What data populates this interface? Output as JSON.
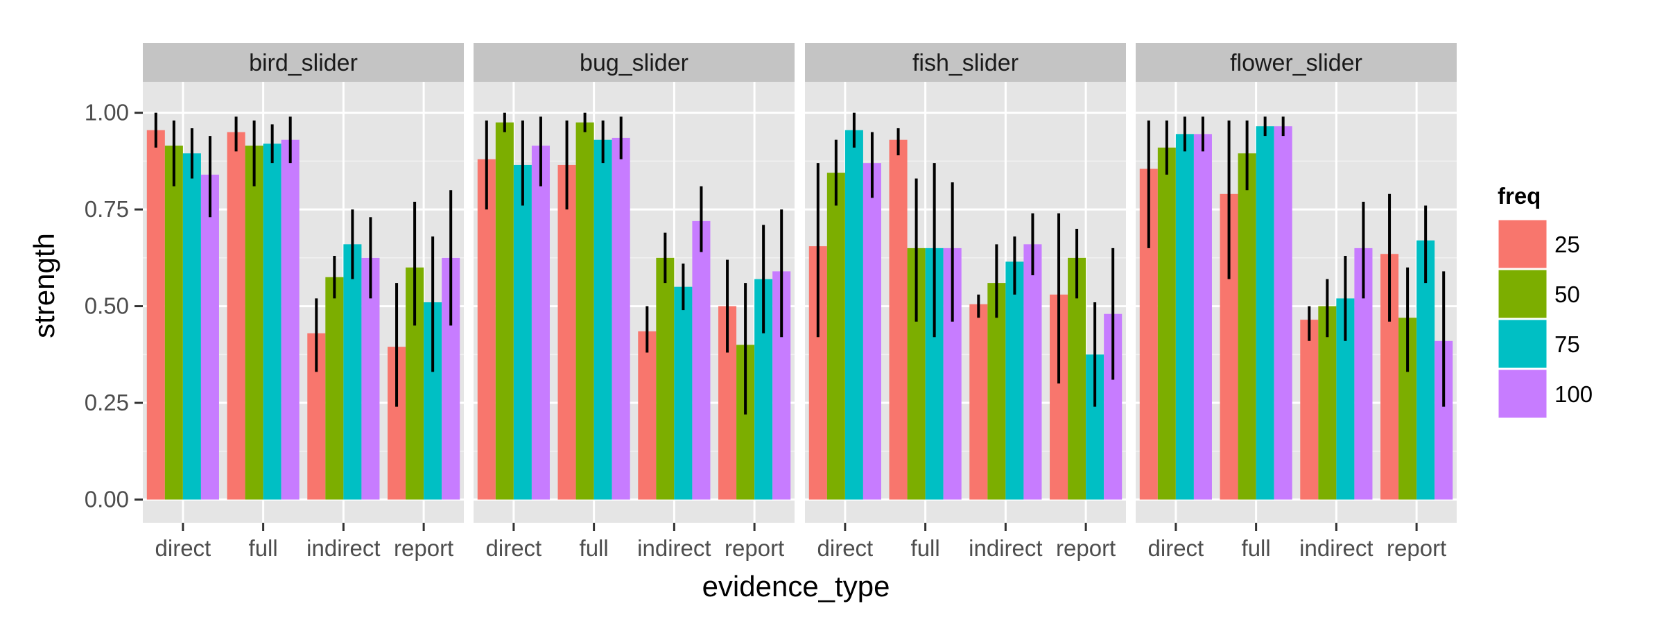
{
  "chart_data": {
    "type": "bar",
    "facets": [
      "bird_slider",
      "bug_slider",
      "fish_slider",
      "flower_slider"
    ],
    "categories": [
      "direct",
      "full",
      "indirect",
      "report"
    ],
    "xlabel": "evidence_type",
    "ylabel": "strength",
    "ylim": [
      -0.06,
      1.08
    ],
    "yticks": [
      "0.00",
      "0.25",
      "0.50",
      "0.75",
      "1.00"
    ],
    "ytick_values": [
      0,
      0.25,
      0.5,
      0.75,
      1.0
    ],
    "grid": true,
    "legend": {
      "title": "freq",
      "position": "right",
      "entries": [
        "25",
        "50",
        "75",
        "100"
      ],
      "colors": [
        "#F8766D",
        "#7CAE00",
        "#00BFC4",
        "#C77CFF"
      ]
    },
    "panels": {
      "bird_slider": {
        "values": {
          "direct": [
            0.955,
            0.915,
            0.895,
            0.84
          ],
          "full": [
            0.95,
            0.915,
            0.92,
            0.93
          ],
          "indirect": [
            0.43,
            0.575,
            0.66,
            0.625
          ],
          "report": [
            0.395,
            0.6,
            0.51,
            0.625
          ]
        },
        "errors": {
          "direct": [
            [
              0.91,
              1.0
            ],
            [
              0.81,
              0.98
            ],
            [
              0.83,
              0.96
            ],
            [
              0.73,
              0.94
            ]
          ],
          "full": [
            [
              0.9,
              0.99
            ],
            [
              0.81,
              0.98
            ],
            [
              0.87,
              0.97
            ],
            [
              0.87,
              0.99
            ]
          ],
          "indirect": [
            [
              0.33,
              0.52
            ],
            [
              0.52,
              0.63
            ],
            [
              0.57,
              0.75
            ],
            [
              0.52,
              0.73
            ]
          ],
          "report": [
            [
              0.24,
              0.56
            ],
            [
              0.45,
              0.77
            ],
            [
              0.33,
              0.68
            ],
            [
              0.45,
              0.8
            ]
          ]
        }
      },
      "bug_slider": {
        "values": {
          "direct": [
            0.88,
            0.975,
            0.865,
            0.915
          ],
          "full": [
            0.865,
            0.975,
            0.93,
            0.935
          ],
          "indirect": [
            0.435,
            0.625,
            0.55,
            0.72
          ],
          "report": [
            0.5,
            0.4,
            0.57,
            0.59
          ]
        },
        "errors": {
          "direct": [
            [
              0.75,
              0.98
            ],
            [
              0.95,
              1.0
            ],
            [
              0.76,
              0.98
            ],
            [
              0.81,
              0.99
            ]
          ],
          "full": [
            [
              0.75,
              0.98
            ],
            [
              0.95,
              1.0
            ],
            [
              0.87,
              0.98
            ],
            [
              0.88,
              0.99
            ]
          ],
          "indirect": [
            [
              0.38,
              0.5
            ],
            [
              0.56,
              0.69
            ],
            [
              0.49,
              0.61
            ],
            [
              0.64,
              0.81
            ]
          ],
          "report": [
            [
              0.38,
              0.62
            ],
            [
              0.22,
              0.56
            ],
            [
              0.43,
              0.71
            ],
            [
              0.42,
              0.75
            ]
          ]
        }
      },
      "fish_slider": {
        "values": {
          "direct": [
            0.655,
            0.845,
            0.955,
            0.87
          ],
          "full": [
            0.93,
            0.65,
            0.65,
            0.65
          ],
          "indirect": [
            0.505,
            0.56,
            0.615,
            0.66
          ],
          "report": [
            0.53,
            0.625,
            0.375,
            0.48
          ]
        },
        "errors": {
          "direct": [
            [
              0.42,
              0.87
            ],
            [
              0.76,
              0.93
            ],
            [
              0.91,
              1.0
            ],
            [
              0.78,
              0.95
            ]
          ],
          "full": [
            [
              0.89,
              0.96
            ],
            [
              0.46,
              0.83
            ],
            [
              0.42,
              0.87
            ],
            [
              0.46,
              0.82
            ]
          ],
          "indirect": [
            [
              0.47,
              0.53
            ],
            [
              0.47,
              0.66
            ],
            [
              0.53,
              0.68
            ],
            [
              0.58,
              0.74
            ]
          ],
          "report": [
            [
              0.3,
              0.74
            ],
            [
              0.52,
              0.7
            ],
            [
              0.24,
              0.51
            ],
            [
              0.31,
              0.65
            ]
          ]
        }
      },
      "flower_slider": {
        "values": {
          "direct": [
            0.855,
            0.91,
            0.945,
            0.945
          ],
          "full": [
            0.79,
            0.895,
            0.965,
            0.965
          ],
          "indirect": [
            0.465,
            0.5,
            0.52,
            0.65
          ],
          "report": [
            0.635,
            0.47,
            0.67,
            0.41
          ]
        },
        "errors": {
          "direct": [
            [
              0.65,
              0.98
            ],
            [
              0.84,
              0.98
            ],
            [
              0.9,
              0.99
            ],
            [
              0.9,
              0.99
            ]
          ],
          "full": [
            [
              0.57,
              0.98
            ],
            [
              0.8,
              0.98
            ],
            [
              0.94,
              0.99
            ],
            [
              0.94,
              0.99
            ]
          ],
          "indirect": [
            [
              0.41,
              0.5
            ],
            [
              0.42,
              0.57
            ],
            [
              0.41,
              0.63
            ],
            [
              0.52,
              0.77
            ]
          ],
          "report": [
            [
              0.46,
              0.79
            ],
            [
              0.33,
              0.6
            ],
            [
              0.56,
              0.76
            ],
            [
              0.24,
              0.59
            ]
          ]
        }
      }
    }
  }
}
